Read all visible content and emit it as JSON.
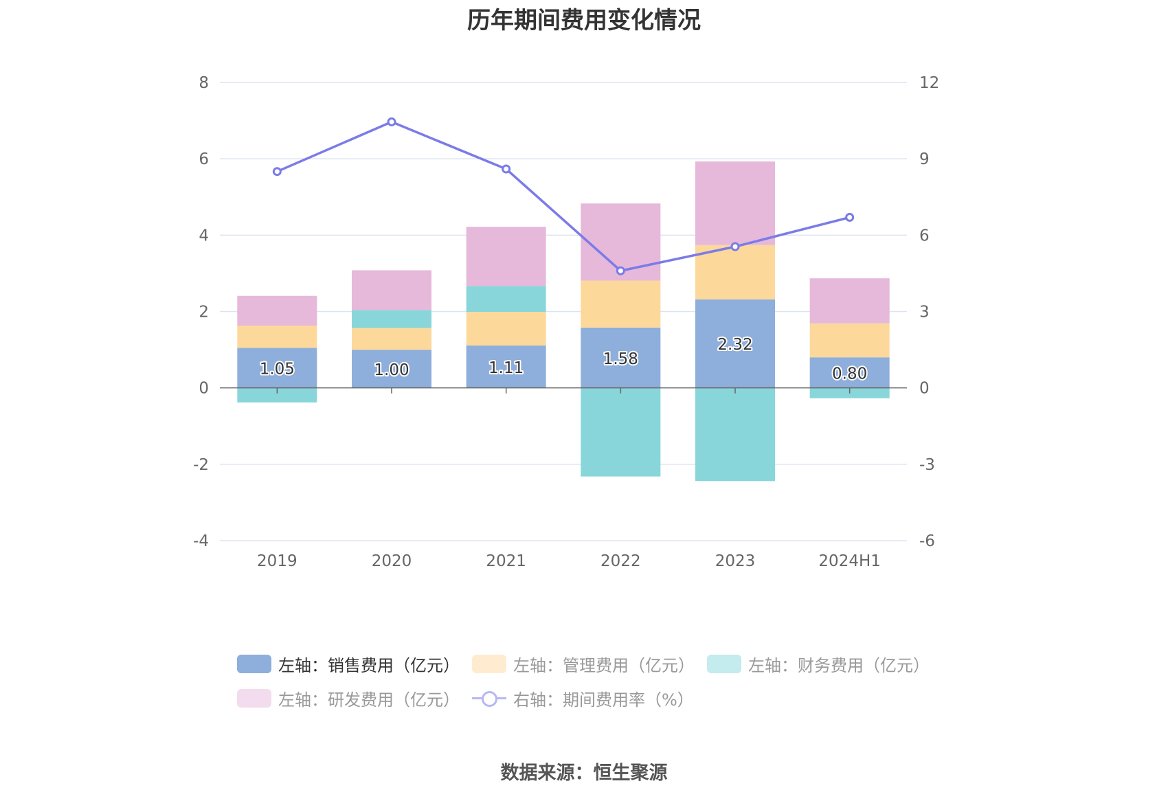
{
  "chart_data": {
    "type": "bar",
    "title": "历年期间费用变化情况",
    "categories": [
      "2019",
      "2020",
      "2021",
      "2022",
      "2023",
      "2024H1"
    ],
    "left_axis": {
      "min": -4,
      "max": 8,
      "ticks": [
        "8",
        "6",
        "4",
        "2",
        "0",
        "-2",
        "-4"
      ]
    },
    "right_axis": {
      "min": -6,
      "max": 12,
      "ticks": [
        "12",
        "9",
        "6",
        "3",
        "0",
        "-3",
        "-6"
      ]
    },
    "series": [
      {
        "name": "左轴：销售费用（亿元）",
        "type": "bar",
        "stack": "total",
        "axis": "left",
        "color": "#8eaedb",
        "values": [
          1.05,
          1.0,
          1.11,
          1.58,
          2.32,
          0.8
        ],
        "labels": [
          "1.05",
          "1.00",
          "1.11",
          "1.58",
          "2.32",
          "0.80"
        ]
      },
      {
        "name": "左轴：管理费用（亿元）",
        "type": "bar",
        "stack": "total",
        "axis": "left",
        "color": "#fdd89b",
        "values": [
          0.58,
          0.57,
          0.88,
          1.23,
          1.42,
          0.89
        ]
      },
      {
        "name": "左轴：财务费用（亿元）",
        "type": "bar",
        "stack": "total",
        "axis": "left",
        "color": "#88d6da",
        "values": [
          -0.38,
          0.47,
          0.68,
          -2.32,
          -2.44,
          -0.27
        ]
      },
      {
        "name": "左轴：研发费用（亿元）",
        "type": "bar",
        "stack": "total",
        "axis": "left",
        "color": "#e6b8d9",
        "values": [
          0.78,
          1.04,
          1.55,
          2.02,
          2.19,
          1.18
        ]
      },
      {
        "name": "右轴：期间费用率（%）",
        "type": "line",
        "axis": "right",
        "color": "#7b7be8",
        "values": [
          8.5,
          10.45,
          8.6,
          4.6,
          5.55,
          6.7
        ]
      }
    ],
    "legend_position": "bottom",
    "grid": true
  },
  "legend": [
    {
      "label": "左轴：销售费用（亿元）",
      "swatch": "#8eaedb",
      "kind": "bar",
      "active": true
    },
    {
      "label": "左轴：管理费用（亿元）",
      "swatch": "#ffecd0",
      "kind": "bar",
      "active": false
    },
    {
      "label": "左轴：财务费用（亿元）",
      "swatch": "#c4ebed",
      "kind": "bar",
      "active": false
    },
    {
      "label": "左轴：研发费用（亿元）",
      "swatch": "#f2dced",
      "kind": "bar",
      "active": false
    },
    {
      "label": "右轴：期间费用率（%）",
      "swatch": "#b7b7f2",
      "kind": "line",
      "active": false
    }
  ],
  "source": "数据来源：恒生聚源"
}
